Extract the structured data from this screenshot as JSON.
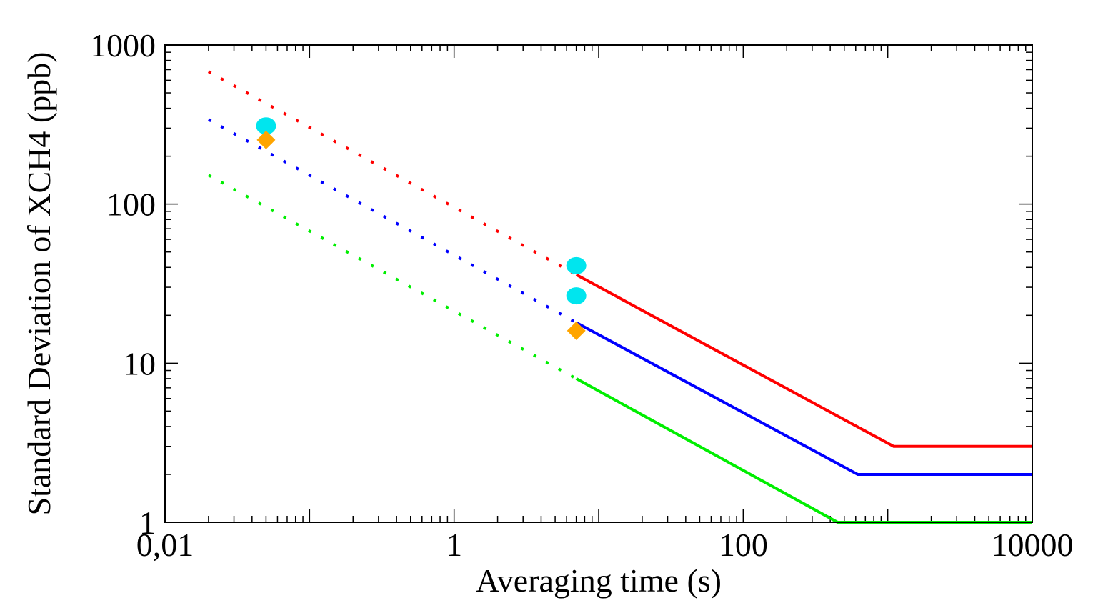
{
  "chart_data": {
    "type": "line",
    "title": "",
    "xlabel": "Averaging time (s)",
    "ylabel": "Standard Deviation of XCH4 (ppb)",
    "xscale": "log",
    "yscale": "log",
    "xlim": [
      0.01,
      10000
    ],
    "ylim": [
      1,
      1000
    ],
    "x_ticks": [
      {
        "value": 0.01,
        "label": "0,01"
      },
      {
        "value": 1,
        "label": "1"
      },
      {
        "value": 100,
        "label": "100"
      },
      {
        "value": 10000,
        "label": "10000"
      }
    ],
    "y_ticks": [
      {
        "value": 1,
        "label": "1"
      },
      {
        "value": 10,
        "label": "10"
      },
      {
        "value": 100,
        "label": "100"
      },
      {
        "value": 1000,
        "label": "1000"
      }
    ],
    "grid": false,
    "series": [
      {
        "name": "red",
        "color": "#ff0000",
        "dotted": {
          "x": [
            0.02,
            7.0
          ],
          "y": [
            680,
            36
          ]
        },
        "solid": {
          "x": [
            7.0,
            1100,
            10000
          ],
          "y": [
            36,
            3,
            3
          ]
        }
      },
      {
        "name": "blue",
        "color": "#0000ff",
        "dotted": {
          "x": [
            0.02,
            7.0
          ],
          "y": [
            340,
            18
          ]
        },
        "solid": {
          "x": [
            7.0,
            620,
            10000
          ],
          "y": [
            18,
            2,
            2
          ]
        }
      },
      {
        "name": "green",
        "color": "#00ee00",
        "dotted": {
          "x": [
            0.02,
            7.0
          ],
          "y": [
            152,
            8
          ]
        },
        "solid": {
          "x": [
            7.0,
            450,
            10000
          ],
          "y": [
            8,
            1,
            1
          ]
        }
      }
    ],
    "markers": [
      {
        "shape": "circle",
        "color": "#00e5ee",
        "x": 0.05,
        "y": 310
      },
      {
        "shape": "circle",
        "color": "#00e5ee",
        "x": 7.0,
        "y": 41
      },
      {
        "shape": "circle",
        "color": "#00e5ee",
        "x": 7.0,
        "y": 26.5
      },
      {
        "shape": "diamond",
        "color": "#ffa500",
        "x": 0.05,
        "y": 253
      },
      {
        "shape": "diamond",
        "color": "#ffa500",
        "x": 7.0,
        "y": 16
      }
    ]
  }
}
